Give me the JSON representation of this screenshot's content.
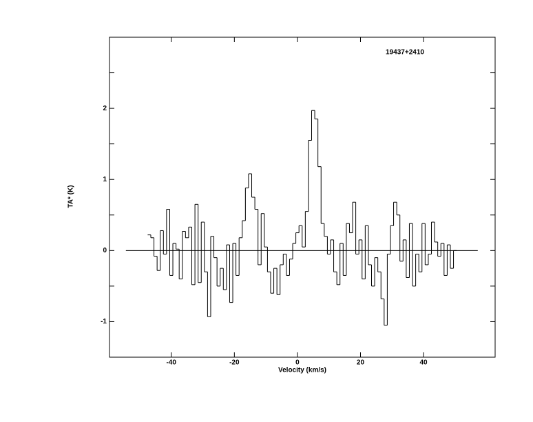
{
  "chart_data": {
    "type": "step",
    "title": "19437+2410",
    "x_label": "Velocity (km/s)",
    "y_label": "TA* (K)",
    "x": [
      -47,
      -46,
      -45,
      -44,
      -43,
      -42,
      -41,
      -40,
      -39,
      -38,
      -37,
      -36,
      -35,
      -34,
      -33,
      -32,
      -31,
      -30,
      -29,
      -28,
      -27,
      -26,
      -25,
      -24,
      -23,
      -22,
      -21,
      -20,
      -19,
      -18,
      -17,
      -16,
      -15,
      -14,
      -13,
      -12,
      -11,
      -10,
      -9,
      -8,
      -7,
      -6,
      -5,
      -4,
      -3,
      -2,
      -1,
      0,
      1,
      2,
      3,
      4,
      5,
      6,
      7,
      8,
      9,
      10,
      11,
      12,
      13,
      14,
      15,
      16,
      17,
      18,
      19,
      20,
      21,
      22,
      23,
      24,
      25,
      26,
      27,
      28,
      29,
      30,
      31,
      32,
      33,
      34,
      35,
      36,
      37,
      38,
      39,
      40,
      41,
      42,
      43,
      44,
      45,
      46,
      47,
      48,
      49,
      50
    ],
    "series": [
      {
        "name": "spectrum",
        "color": "#000000",
        "values": [
          0.22,
          0.18,
          -0.08,
          -0.28,
          0.28,
          -0.05,
          0.58,
          -0.35,
          0.1,
          0.02,
          -0.4,
          0.27,
          0.18,
          0.33,
          -0.48,
          0.65,
          -0.45,
          0.4,
          -0.3,
          -0.93,
          0.2,
          -0.1,
          -0.5,
          -0.25,
          -0.55,
          0.08,
          -0.73,
          0.1,
          -0.35,
          0.18,
          0.42,
          0.88,
          1.08,
          0.75,
          0.58,
          -0.2,
          0.52,
          0.05,
          -0.3,
          -0.6,
          -0.25,
          -0.62,
          -0.2,
          -0.05,
          -0.35,
          -0.12,
          0.1,
          0.25,
          0.35,
          0.05,
          0.55,
          1.55,
          1.97,
          1.85,
          1.18,
          0.38,
          0.2,
          -0.05,
          0.15,
          -0.3,
          -0.48,
          0.1,
          -0.35,
          0.38,
          0.25,
          0.68,
          -0.05,
          0.15,
          -0.4,
          0.35,
          -0.2,
          -0.5,
          -0.1,
          -0.3,
          -0.68,
          -1.05,
          -0.05,
          0.35,
          0.68,
          0.5,
          -0.15,
          0.15,
          -0.38,
          0.38,
          -0.5,
          -0.05,
          -0.3,
          0.38,
          -0.2,
          -0.05,
          0.4,
          0.12,
          -0.08,
          0.1,
          -0.35,
          0.08,
          -0.25,
          0.0
        ]
      }
    ],
    "baseline": {
      "value": 0,
      "xrange": [
        -54.4,
        57.2
      ]
    },
    "xlim": [
      -59.6,
      62.7
    ],
    "xticks": [
      -40,
      -20,
      0,
      20,
      40
    ],
    "ylim": [
      -1.5,
      3
    ],
    "yticks": [
      -1,
      0,
      1,
      2
    ],
    "yminorticks": [
      -0.5,
      0.5,
      1.5,
      2.5
    ],
    "grid": false
  }
}
